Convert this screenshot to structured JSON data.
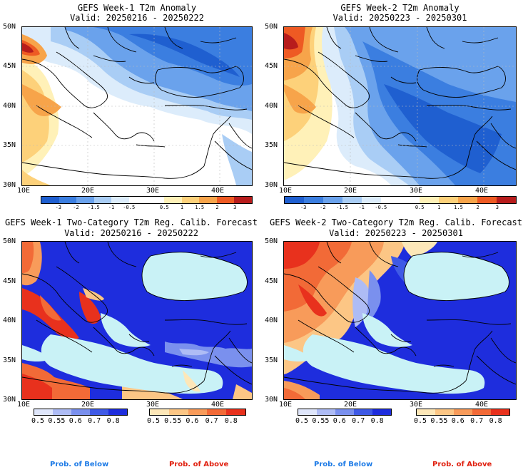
{
  "colors": {
    "anomaly_scale": [
      "#1f5fd0",
      "#3b7ee0",
      "#6aa2ec",
      "#a9cdf5",
      "#dcecfb",
      "#ffffff",
      "#ffffff",
      "#fff1b8",
      "#fdd17a",
      "#f7a44a",
      "#ee5a23",
      "#b71c1c"
    ],
    "below_scale": [
      "#dfe6fb",
      "#aebcf5",
      "#7a90ee",
      "#3f5ae6",
      "#1e2ddd"
    ],
    "above_scale": [
      "#fde7b8",
      "#fcc685",
      "#f89b5a",
      "#f26a37",
      "#e8311d"
    ],
    "sea": "#c9f2f6",
    "below_label": "#1e7be6",
    "above_label": "#e0200f"
  },
  "panels": [
    {
      "title": "GEFS Week-1 T2m Anomaly",
      "valid": "Valid: 20250216 - 20250222",
      "kind": "anomaly",
      "lat_ticks": [
        "50N",
        "45N",
        "40N",
        "35N",
        "30N"
      ],
      "lon_ticks": [
        "10E",
        "20E",
        "30E",
        "40E"
      ],
      "colorbar_labels": [
        "-3",
        "-2",
        "-1.5",
        "-1",
        "-0.5",
        "0.5",
        "1",
        "1.5",
        "2",
        "3"
      ]
    },
    {
      "title": "GEFS Week-2 T2m Anomaly",
      "valid": "Valid: 20250223 - 20250301",
      "kind": "anomaly",
      "lat_ticks": [
        "50N",
        "45N",
        "40N",
        "35N",
        "30N"
      ],
      "lon_ticks": [
        "10E",
        "20E",
        "30E",
        "40E"
      ],
      "colorbar_labels": [
        "-3",
        "-2",
        "-1.5",
        "-1",
        "-0.5",
        "0.5",
        "1",
        "1.5",
        "2",
        "3"
      ]
    },
    {
      "title": "GEFS Week-1 Two-Category T2m Reg. Calib. Forecast",
      "valid": "Valid: 20250216 - 20250222",
      "kind": "probability",
      "lat_ticks": [
        "50N",
        "45N",
        "40N",
        "35N",
        "30N"
      ],
      "lon_ticks": [
        "10E",
        "20E",
        "30E",
        "40E"
      ],
      "below_labels": [
        "0.5",
        "0.55",
        "0.6",
        "0.7",
        "0.8"
      ],
      "above_labels": [
        "0.5",
        "0.55",
        "0.6",
        "0.7",
        "0.8"
      ],
      "below_caption": "Prob. of Below",
      "above_caption": "Prob. of Above"
    },
    {
      "title": "GEFS Week-2 Two-Category T2m Reg. Calib. Forecast",
      "valid": "Valid: 20250223 - 20250301",
      "kind": "probability",
      "lat_ticks": [
        "50N",
        "45N",
        "40N",
        "35N",
        "30N"
      ],
      "lon_ticks": [
        "10E",
        "20E",
        "30E",
        "40E"
      ],
      "below_labels": [
        "0.5",
        "0.55",
        "0.6",
        "0.7",
        "0.8"
      ],
      "above_labels": [
        "0.5",
        "0.55",
        "0.6",
        "0.7",
        "0.8"
      ],
      "below_caption": "Prob. of Below",
      "above_caption": "Prob. of Above"
    }
  ]
}
